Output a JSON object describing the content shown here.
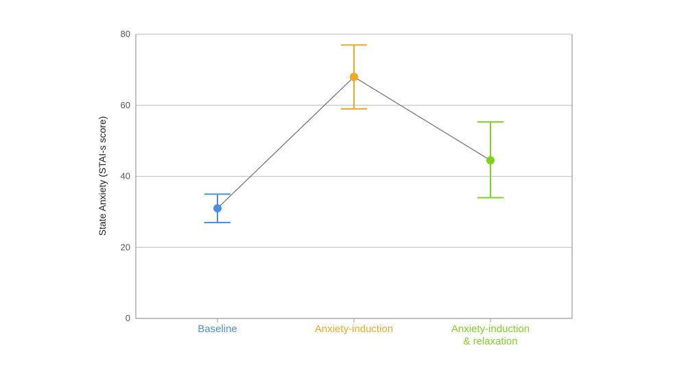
{
  "chart_data": {
    "type": "line",
    "title": "",
    "xlabel": "",
    "ylabel": "State Anxiety (STAI-s score)",
    "ylim": [
      0,
      80
    ],
    "yticks": [
      0,
      20,
      40,
      60,
      80
    ],
    "grid": true,
    "legend": "none",
    "categories": [
      [
        "Baseline"
      ],
      [
        "Anxiety-induction"
      ],
      [
        "Anxiety-induction",
        "& relaxation"
      ]
    ],
    "points": [
      {
        "mean": 31,
        "lower": 27,
        "upper": 35,
        "color": "#4a90e2"
      },
      {
        "mean": 68,
        "lower": 59,
        "upper": 77,
        "color": "#f5a623"
      },
      {
        "mean": 44.5,
        "lower": 34,
        "upper": 55.3,
        "color": "#7ed321"
      }
    ],
    "line_color": "#777777",
    "grid_color": "#c8c8c8",
    "frame_color": "#999999"
  }
}
